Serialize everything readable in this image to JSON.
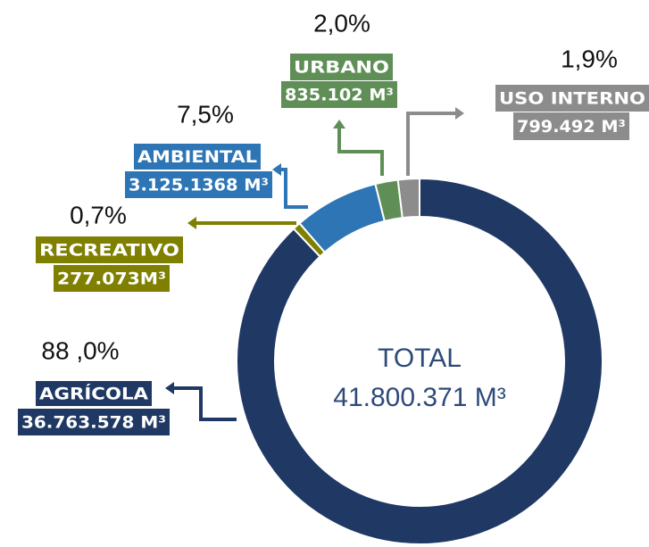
{
  "chart_data": {
    "type": "donut",
    "categories": [
      "AGRÍCOLA",
      "RECREATIVO",
      "AMBIENTAL",
      "URBANO",
      "USO INTERNO"
    ],
    "values": [
      88.0,
      0.7,
      7.5,
      2.0,
      1.9
    ],
    "value_labels": [
      "88 ,0%",
      "0,7%",
      "7,5%",
      "2,0%",
      "1,9%"
    ],
    "volume_labels": [
      "36.763.578 M³",
      "277.073M³",
      "3.125.1368 M³",
      "835.102 M³",
      "799.492 M³"
    ],
    "colors": [
      "#1f3864",
      "#7f7f00",
      "#2e75b6",
      "#5f8f57",
      "#8c8c8c"
    ],
    "center_title": "TOTAL",
    "center_value": "41.800.371 M³"
  }
}
